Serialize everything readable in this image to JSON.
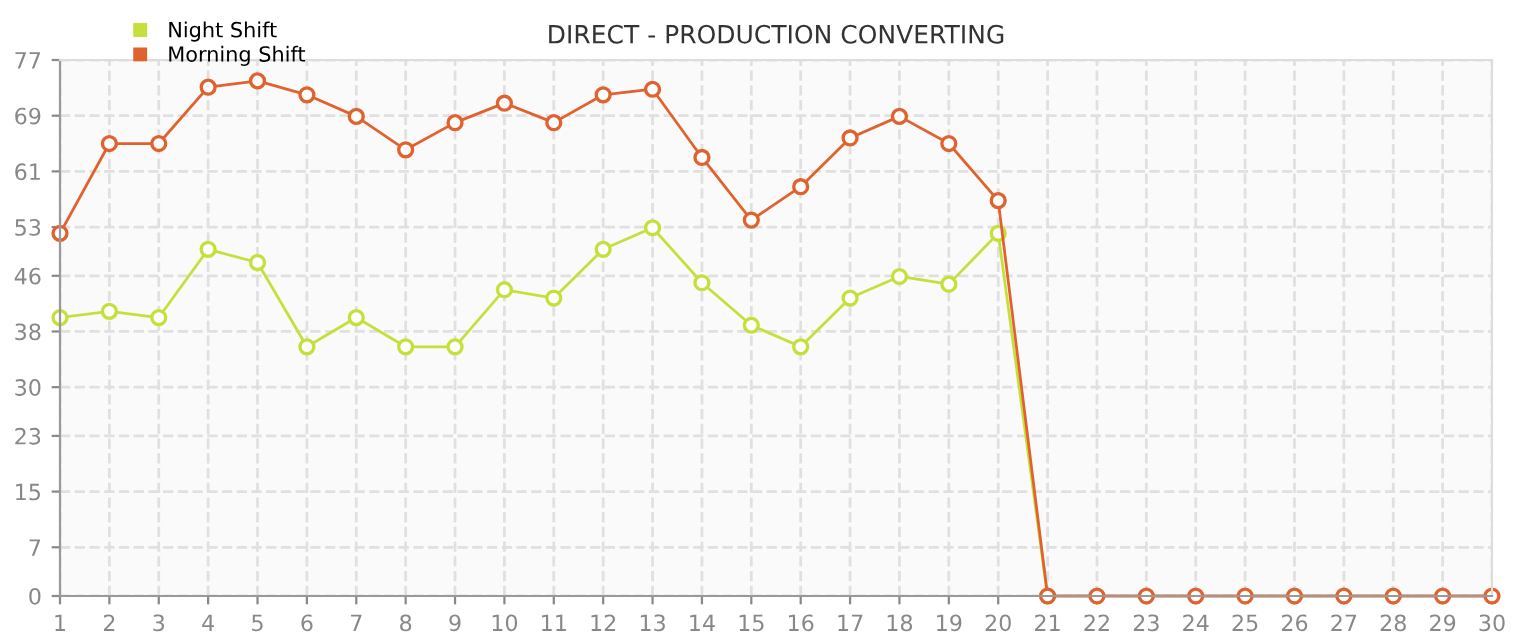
{
  "chart_data": {
    "type": "line",
    "title": "DIRECT - PRODUCTION CONVERTING",
    "x": [
      1,
      2,
      3,
      4,
      5,
      6,
      7,
      8,
      9,
      10,
      11,
      12,
      13,
      14,
      15,
      16,
      17,
      18,
      19,
      20,
      21,
      22,
      23,
      24,
      25,
      26,
      27,
      28,
      29,
      30
    ],
    "series": [
      {
        "name": "Night Shift",
        "color": "#c5e03b",
        "values": [
          40,
          40.9,
          40,
          49.8,
          47.9,
          35.8,
          40,
          35.8,
          35.8,
          44,
          42.8,
          49.8,
          52.9,
          45,
          38.9,
          35.8,
          42.8,
          45.9,
          44.8,
          52.1,
          0,
          null,
          null,
          null,
          null,
          null,
          null,
          null,
          null,
          null
        ]
      },
      {
        "name": "Morning Shift",
        "color": "#e0622e",
        "values": [
          52.1,
          65,
          65,
          73.1,
          74,
          72,
          68.9,
          64.1,
          68,
          70.8,
          68,
          72,
          72.8,
          63,
          54,
          58.8,
          65.8,
          68.9,
          65,
          56.8,
          0,
          0,
          0,
          0,
          0,
          0,
          0,
          0,
          0,
          0
        ]
      }
    ],
    "xlim": [
      1,
      30
    ],
    "xticks": [
      1,
      2,
      3,
      4,
      5,
      6,
      7,
      8,
      9,
      10,
      11,
      12,
      13,
      14,
      15,
      16,
      17,
      18,
      19,
      20,
      21,
      22,
      23,
      24,
      25,
      26,
      27,
      28,
      29,
      30
    ],
    "ylim": [
      0,
      77
    ],
    "yticks": [
      0,
      7,
      15,
      23,
      30,
      38,
      46,
      53,
      61,
      69,
      77
    ],
    "grid": true,
    "legend": "top left",
    "marker": "circle",
    "line_style": "solid"
  }
}
